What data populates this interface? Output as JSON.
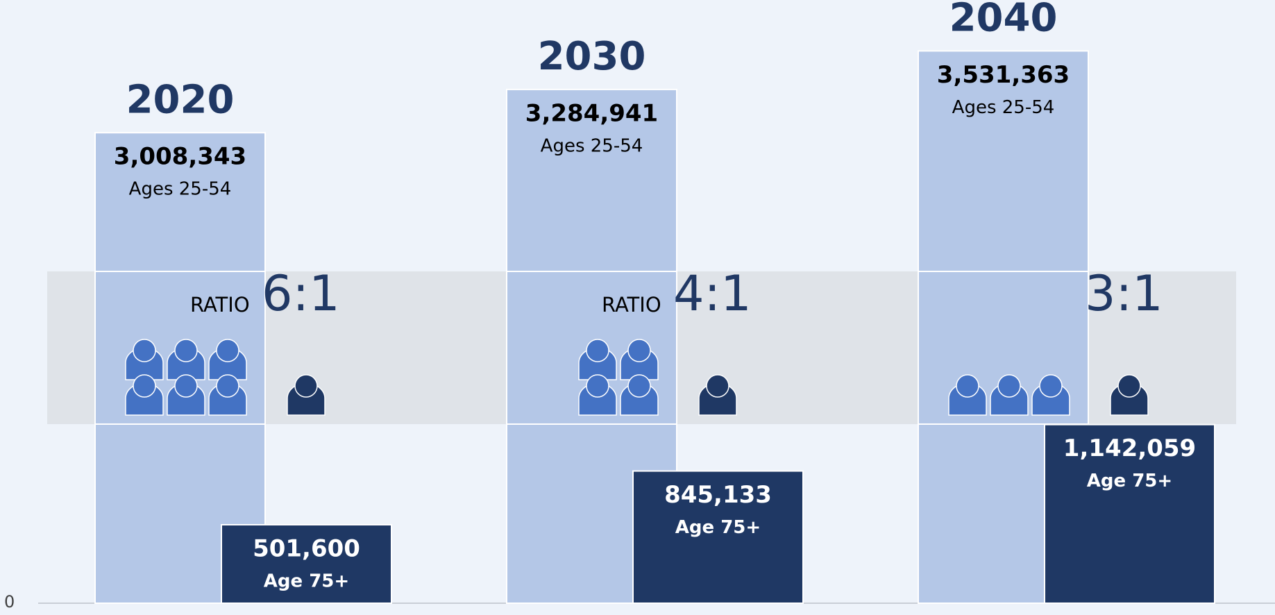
{
  "chart_data": {
    "type": "bar",
    "categories": [
      "2020",
      "2030",
      "2040"
    ],
    "series": [
      {
        "name": "Ages 25-54",
        "color": "#b4c7e7",
        "values": [
          3008343,
          3284941,
          3531363
        ],
        "value_labels": [
          "3,008,343",
          "3,284,941",
          "3,531,363"
        ]
      },
      {
        "name": "Age 75+",
        "color": "#1f3864",
        "values": [
          501600,
          845133,
          1142059
        ],
        "value_labels": [
          "501,600",
          "845,133",
          "1,142,059"
        ]
      }
    ],
    "ratio_labels": [
      "RATIO",
      "RATIO",
      null
    ],
    "ratios": [
      "6:1",
      "4:1",
      "3:1"
    ],
    "ylim": [
      0,
      3857000
    ],
    "yticks": [
      0
    ]
  }
}
